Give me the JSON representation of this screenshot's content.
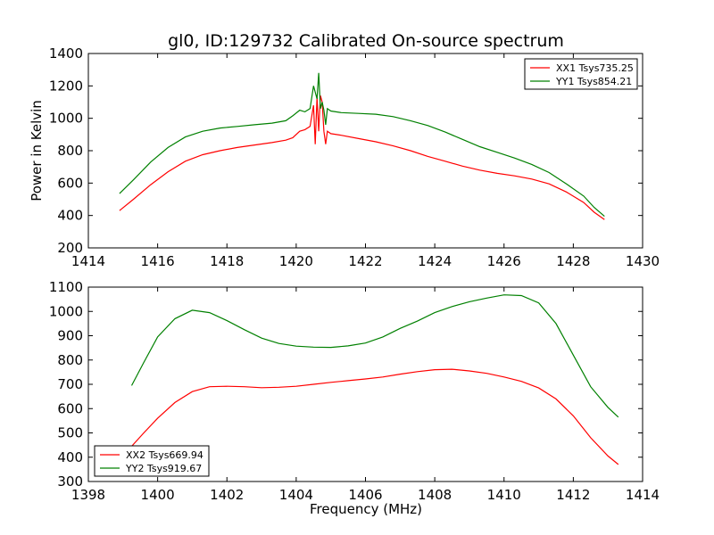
{
  "chart_data": [
    {
      "type": "line",
      "title": "gl0, ID:129732 Calibrated On-source spectrum",
      "xlabel": "",
      "ylabel": "Power in Kelvin",
      "xlim": [
        1414,
        1430
      ],
      "ylim": [
        200,
        1400
      ],
      "xticks": [
        1414,
        1416,
        1418,
        1420,
        1422,
        1424,
        1426,
        1428,
        1430
      ],
      "yticks": [
        200,
        400,
        600,
        800,
        1000,
        1200,
        1400
      ],
      "grid": false,
      "legend_position": "top-right",
      "series": [
        {
          "name": "XX1 Tsys735.25",
          "color": "#ff0000",
          "x": [
            1414.9,
            1415.3,
            1415.8,
            1416.3,
            1416.8,
            1417.3,
            1417.8,
            1418.3,
            1418.8,
            1419.3,
            1419.7,
            1419.9,
            1420.1,
            1420.25,
            1420.4,
            1420.5,
            1420.55,
            1420.6,
            1420.65,
            1420.7,
            1420.75,
            1420.8,
            1420.85,
            1420.9,
            1421.0,
            1421.3,
            1421.8,
            1422.3,
            1422.8,
            1423.3,
            1423.8,
            1424.3,
            1424.8,
            1425.3,
            1425.8,
            1426.3,
            1426.8,
            1427.3,
            1427.8,
            1428.3,
            1428.6,
            1428.9
          ],
          "y": [
            430,
            500,
            590,
            670,
            735,
            775,
            800,
            820,
            835,
            850,
            865,
            880,
            920,
            930,
            950,
            1080,
            840,
            1130,
            920,
            1140,
            1100,
            920,
            840,
            920,
            905,
            895,
            875,
            855,
            830,
            800,
            765,
            735,
            705,
            680,
            660,
            645,
            625,
            595,
            545,
            480,
            420,
            375
          ]
        },
        {
          "name": "YY1 Tsys854.21",
          "color": "#008000",
          "x": [
            1414.9,
            1415.3,
            1415.8,
            1416.3,
            1416.8,
            1417.3,
            1417.8,
            1418.3,
            1418.8,
            1419.3,
            1419.7,
            1419.9,
            1420.1,
            1420.25,
            1420.4,
            1420.5,
            1420.6,
            1420.65,
            1420.7,
            1420.75,
            1420.8,
            1420.85,
            1420.9,
            1421.0,
            1421.3,
            1421.8,
            1422.3,
            1422.8,
            1423.3,
            1423.8,
            1424.3,
            1424.8,
            1425.3,
            1425.8,
            1426.3,
            1426.8,
            1427.3,
            1427.8,
            1428.3,
            1428.6,
            1428.9
          ],
          "y": [
            535,
            620,
            730,
            820,
            885,
            920,
            940,
            950,
            960,
            970,
            985,
            1015,
            1050,
            1040,
            1060,
            1200,
            1120,
            1280,
            1060,
            1100,
            1050,
            960,
            1060,
            1045,
            1035,
            1030,
            1025,
            1010,
            985,
            955,
            915,
            870,
            825,
            790,
            755,
            715,
            665,
            595,
            520,
            450,
            395
          ]
        }
      ]
    },
    {
      "type": "line",
      "title": "",
      "xlabel": "Frequency (MHz)",
      "ylabel": "",
      "xlim": [
        1398,
        1414
      ],
      "ylim": [
        300,
        1100
      ],
      "xticks": [
        1398,
        1400,
        1402,
        1404,
        1406,
        1408,
        1410,
        1412,
        1414
      ],
      "yticks": [
        300,
        400,
        500,
        600,
        700,
        800,
        900,
        1000,
        1100
      ],
      "grid": false,
      "legend_position": "bottom-left",
      "series": [
        {
          "name": "XX2 Tsys669.94",
          "color": "#ff0000",
          "x": [
            1399.25,
            1399.6,
            1400.0,
            1400.5,
            1401.0,
            1401.5,
            1402.0,
            1402.5,
            1403.0,
            1403.5,
            1404.0,
            1404.5,
            1405.0,
            1405.5,
            1406.0,
            1406.5,
            1407.0,
            1407.5,
            1408.0,
            1408.5,
            1409.0,
            1409.5,
            1410.0,
            1410.5,
            1411.0,
            1411.5,
            1412.0,
            1412.5,
            1413.0,
            1413.3
          ],
          "y": [
            445,
            500,
            560,
            625,
            670,
            690,
            692,
            690,
            686,
            688,
            692,
            700,
            708,
            715,
            722,
            730,
            742,
            752,
            760,
            762,
            755,
            745,
            730,
            712,
            685,
            640,
            570,
            480,
            405,
            370
          ]
        },
        {
          "name": "YY2 Tsys919.67",
          "color": "#008000",
          "x": [
            1399.25,
            1399.6,
            1400.0,
            1400.5,
            1401.0,
            1401.5,
            1402.0,
            1402.5,
            1403.0,
            1403.5,
            1404.0,
            1404.5,
            1405.0,
            1405.5,
            1406.0,
            1406.5,
            1407.0,
            1407.5,
            1408.0,
            1408.5,
            1409.0,
            1409.5,
            1410.0,
            1410.5,
            1411.0,
            1411.5,
            1412.0,
            1412.5,
            1413.0,
            1413.3
          ],
          "y": [
            695,
            790,
            895,
            970,
            1005,
            995,
            962,
            925,
            890,
            868,
            857,
            853,
            852,
            858,
            870,
            895,
            930,
            960,
            995,
            1020,
            1040,
            1055,
            1068,
            1065,
            1035,
            950,
            820,
            690,
            605,
            565
          ]
        }
      ]
    }
  ]
}
